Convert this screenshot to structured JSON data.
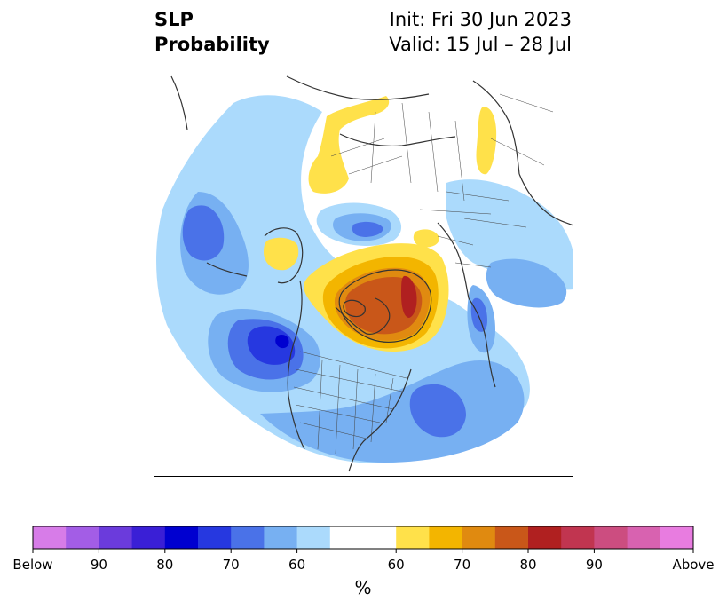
{
  "header": {
    "title_line1": "SLP",
    "title_line2": "Probability",
    "init": "Init: Fri 30 Jun 2023",
    "valid": "Valid: 15 Jul – 28 Jul"
  },
  "colorbar": {
    "colors": [
      "#d77ce8",
      "#a35de6",
      "#6b3bdc",
      "#3a1fd6",
      "#0000d0",
      "#2638e0",
      "#4a72e8",
      "#77b0f2",
      "#abdafc",
      "#ffffff",
      "#ffe14a",
      "#f3b500",
      "#e08a10",
      "#c95719",
      "#b02020",
      "#c13550",
      "#cc4d80",
      "#d862b0",
      "#e87ce0"
    ],
    "tick_labels": [
      "Below",
      "90",
      "80",
      "70",
      "60",
      "60",
      "70",
      "80",
      "90",
      "Above"
    ],
    "unit": "%"
  },
  "map": {
    "palette": {
      "lightblue": "#abdafc",
      "midblue": "#77b0f2",
      "blue": "#4a72e8",
      "darkblue": "#2638e0",
      "deepblue": "#0000d0",
      "yellow": "#ffe14a",
      "gold": "#f3b500",
      "orange": "#e08a10",
      "rust": "#c95719",
      "red": "#b02020"
    }
  }
}
